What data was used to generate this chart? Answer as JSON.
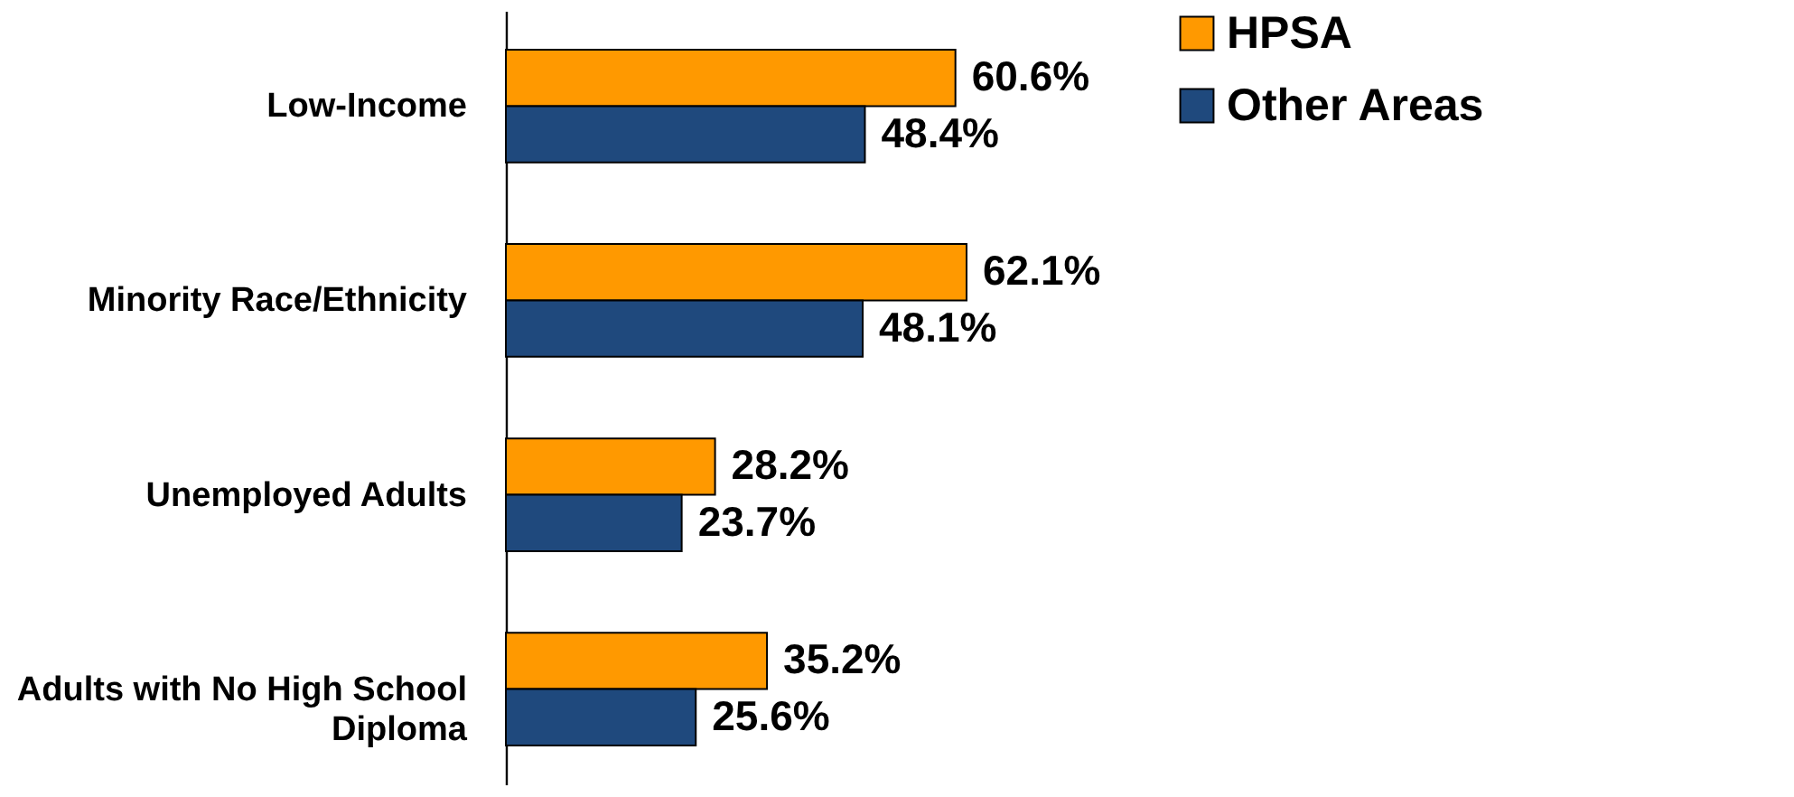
{
  "chart_data": {
    "type": "bar",
    "orientation": "horizontal",
    "categories": [
      "Low-Income",
      "Minority Race/Ethnicity",
      "Unemployed Adults",
      "Adults with No High School Diploma"
    ],
    "series": [
      {
        "name": "HPSA",
        "color": "#ff9900",
        "values": [
          60.6,
          62.1,
          28.2,
          35.2
        ],
        "value_labels": [
          "60.6%",
          "62.1%",
          "28.2%",
          "35.2%"
        ]
      },
      {
        "name": "Other Areas",
        "color": "#1f497d",
        "values": [
          48.4,
          48.1,
          23.7,
          25.6
        ],
        "value_labels": [
          "48.4%",
          "48.1%",
          "23.7%",
          "25.6%"
        ]
      }
    ],
    "legend": "right",
    "tick_labels": "y"
  }
}
